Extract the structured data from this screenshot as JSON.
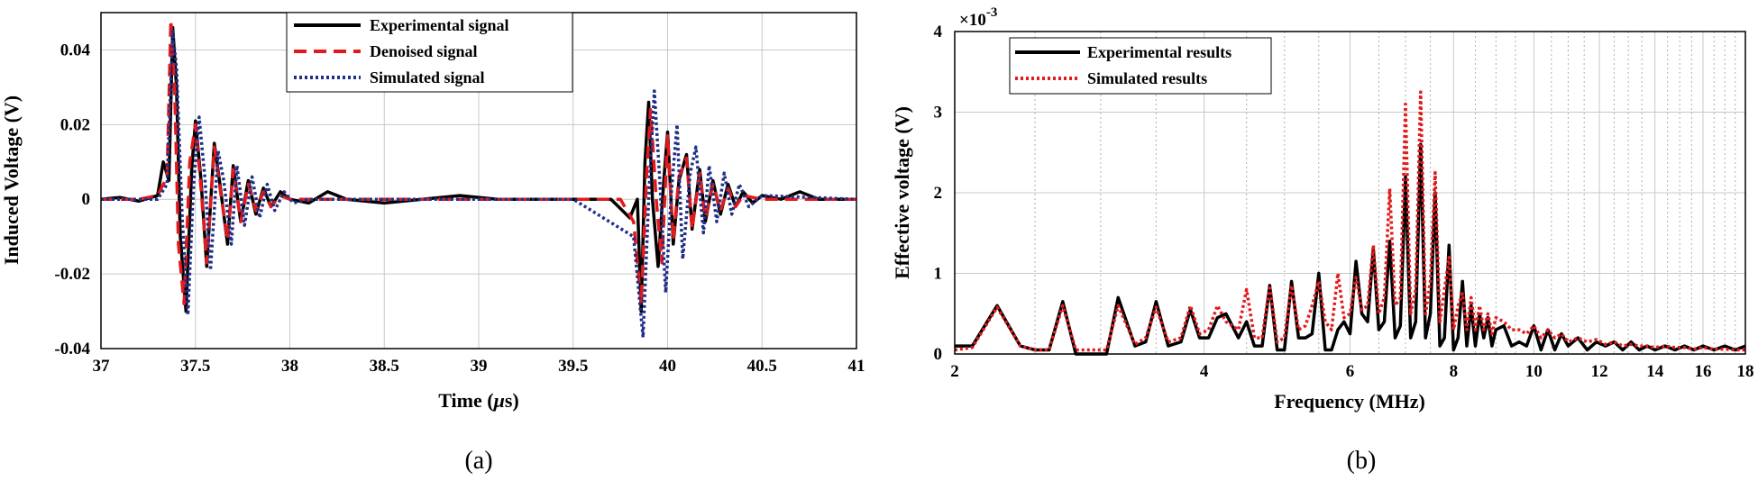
{
  "chart_data": [
    {
      "type": "line",
      "panel_label": "(a)",
      "xlabel_text": "Time (",
      "xlabel_unit_greek": "μ",
      "xlabel_unit_rest": "s)",
      "ylabel": "Induced Voltage (V)",
      "xlim": [
        37,
        41
      ],
      "ylim": [
        -0.04,
        0.05
      ],
      "xticks": [
        37,
        37.5,
        38,
        38.5,
        39,
        39.5,
        40,
        40.5,
        41
      ],
      "xtick_labels": [
        "37",
        "37.5",
        "38",
        "38.5",
        "39",
        "39.5",
        "40",
        "40.5",
        "41"
      ],
      "yticks": [
        -0.04,
        -0.02,
        0,
        0.02,
        0.04
      ],
      "ytick_labels": [
        "-0.04",
        "-0.02",
        "0",
        "0.02",
        "0.04"
      ],
      "grid": true,
      "legend_position": "top-center",
      "series": [
        {
          "name": "Experimental signal",
          "color": "#000000",
          "style": "solid",
          "x": [
            37.0,
            37.1,
            37.2,
            37.3,
            37.33,
            37.36,
            37.38,
            37.4,
            37.42,
            37.45,
            37.48,
            37.5,
            37.53,
            37.56,
            37.6,
            37.63,
            37.67,
            37.7,
            37.74,
            37.78,
            37.82,
            37.86,
            37.9,
            37.95,
            38.0,
            38.1,
            38.2,
            38.3,
            38.5,
            38.7,
            38.9,
            39.1,
            39.3,
            39.5,
            39.7,
            39.8,
            39.84,
            39.86,
            39.88,
            39.9,
            39.92,
            39.95,
            39.98,
            40.0,
            40.03,
            40.06,
            40.1,
            40.13,
            40.17,
            40.2,
            40.24,
            40.28,
            40.32,
            40.36,
            40.4,
            40.45,
            40.5,
            40.6,
            40.7,
            40.8,
            40.9,
            41.0
          ],
          "values": [
            0.0,
            0.0005,
            -0.0005,
            0.001,
            0.01,
            0.005,
            0.046,
            0.03,
            -0.01,
            -0.03,
            0.008,
            0.021,
            0.005,
            -0.018,
            0.015,
            0.004,
            -0.012,
            0.009,
            -0.006,
            0.005,
            -0.004,
            0.003,
            -0.002,
            0.002,
            0.0,
            -0.001,
            0.002,
            0.0,
            -0.001,
            0.0,
            0.001,
            0.0,
            0.0,
            0.0,
            0.0,
            -0.005,
            0.0,
            -0.03,
            0.01,
            0.026,
            0.0,
            -0.018,
            0.005,
            0.018,
            -0.012,
            0.005,
            0.012,
            -0.008,
            0.008,
            -0.006,
            0.005,
            -0.004,
            0.004,
            -0.002,
            0.002,
            -0.001,
            0.001,
            0.0,
            0.002,
            0.0,
            0.0,
            0.0
          ]
        },
        {
          "name": "Denoised signal",
          "color": "#e31a1c",
          "style": "dashed",
          "x": [
            37.0,
            37.2,
            37.3,
            37.35,
            37.37,
            37.39,
            37.41,
            37.44,
            37.47,
            37.5,
            37.53,
            37.56,
            37.6,
            37.63,
            37.67,
            37.7,
            37.74,
            37.78,
            37.82,
            37.86,
            37.9,
            37.95,
            38.0,
            38.5,
            39.0,
            39.5,
            39.75,
            39.82,
            39.86,
            39.89,
            39.91,
            39.94,
            39.97,
            40.0,
            40.03,
            40.06,
            40.1,
            40.13,
            40.17,
            40.2,
            40.24,
            40.28,
            40.32,
            40.36,
            40.4,
            40.5,
            41.0
          ],
          "values": [
            0.0,
            0.0,
            0.001,
            0.006,
            0.048,
            0.03,
            -0.012,
            -0.028,
            0.01,
            0.02,
            0.003,
            -0.017,
            0.014,
            0.003,
            -0.011,
            0.008,
            -0.006,
            0.004,
            -0.003,
            0.002,
            -0.002,
            0.001,
            0.0,
            0.0,
            0.0,
            0.0,
            0.0,
            -0.006,
            -0.028,
            0.008,
            0.024,
            0.0,
            -0.017,
            0.017,
            -0.011,
            0.006,
            0.011,
            -0.008,
            0.007,
            -0.005,
            0.004,
            -0.003,
            0.003,
            -0.002,
            0.001,
            0.0,
            0.0
          ]
        },
        {
          "name": "Simulated signal",
          "color": "#1f2f86",
          "style": "dotted",
          "x": [
            37.0,
            37.3,
            37.35,
            37.38,
            37.4,
            37.43,
            37.46,
            37.49,
            37.52,
            37.55,
            37.58,
            37.62,
            37.65,
            37.69,
            37.72,
            37.76,
            37.8,
            37.84,
            37.88,
            37.92,
            37.97,
            38.02,
            38.1,
            38.5,
            39.0,
            39.5,
            39.82,
            39.87,
            39.9,
            39.93,
            39.96,
            39.99,
            40.02,
            40.05,
            40.08,
            40.12,
            40.15,
            40.19,
            40.22,
            40.26,
            40.3,
            40.34,
            40.38,
            40.43,
            40.5,
            41.0
          ],
          "values": [
            0.0,
            0.0,
            0.004,
            0.045,
            0.035,
            -0.005,
            -0.031,
            0.004,
            0.022,
            0.006,
            -0.019,
            0.013,
            0.005,
            -0.012,
            0.009,
            -0.007,
            0.006,
            -0.005,
            0.004,
            -0.003,
            0.002,
            -0.001,
            0.0,
            0.0,
            0.0,
            0.0,
            -0.01,
            -0.037,
            0.0,
            0.029,
            0.004,
            -0.025,
            0.002,
            0.02,
            -0.016,
            0.007,
            0.014,
            -0.009,
            0.009,
            -0.006,
            0.007,
            -0.004,
            0.004,
            -0.002,
            0.001,
            0.0
          ]
        }
      ]
    },
    {
      "type": "line",
      "panel_label": "(b)",
      "xlabel": "Frequency (MHz)",
      "ylabel": "Effective voltage (V)",
      "y_multiplier_base": "×10",
      "y_multiplier_exp": "-3",
      "xscale": "log",
      "xlim": [
        2,
        18
      ],
      "ylim": [
        0,
        4
      ],
      "xticks": [
        2,
        4,
        6,
        8,
        10,
        12,
        14,
        16,
        18
      ],
      "xtick_labels": [
        "2",
        "4",
        "6",
        "8",
        "10",
        "12",
        "14",
        "16",
        "18"
      ],
      "yticks": [
        0,
        1,
        2,
        3,
        4
      ],
      "ytick_labels": [
        "0",
        "1",
        "2",
        "3",
        "4"
      ],
      "grid": true,
      "legend_position": "top-left",
      "series": [
        {
          "name": "Experimental results",
          "color": "#000000",
          "style": "solid",
          "x": [
            2.0,
            2.1,
            2.25,
            2.4,
            2.5,
            2.6,
            2.7,
            2.8,
            2.95,
            3.05,
            3.15,
            3.3,
            3.4,
            3.5,
            3.62,
            3.75,
            3.85,
            3.95,
            4.05,
            4.15,
            4.25,
            4.4,
            4.5,
            4.6,
            4.7,
            4.8,
            4.9,
            5.0,
            5.1,
            5.2,
            5.3,
            5.4,
            5.5,
            5.6,
            5.7,
            5.8,
            5.9,
            6.0,
            6.1,
            6.2,
            6.3,
            6.4,
            6.5,
            6.6,
            6.7,
            6.8,
            6.9,
            7.0,
            7.1,
            7.2,
            7.3,
            7.4,
            7.5,
            7.6,
            7.7,
            7.8,
            7.9,
            8.0,
            8.1,
            8.2,
            8.3,
            8.4,
            8.5,
            8.6,
            8.7,
            8.8,
            8.9,
            9.0,
            9.2,
            9.4,
            9.6,
            9.8,
            10.0,
            10.2,
            10.4,
            10.6,
            10.8,
            11.0,
            11.3,
            11.6,
            11.9,
            12.2,
            12.5,
            12.8,
            13.1,
            13.4,
            13.7,
            14.0,
            14.4,
            14.8,
            15.2,
            15.6,
            16.0,
            16.5,
            17.0,
            17.5,
            18.0
          ],
          "values": [
            0.1,
            0.1,
            0.6,
            0.1,
            0.05,
            0.05,
            0.65,
            0.0,
            0.0,
            0.0,
            0.7,
            0.1,
            0.15,
            0.65,
            0.1,
            0.15,
            0.55,
            0.2,
            0.2,
            0.45,
            0.5,
            0.2,
            0.4,
            0.1,
            0.1,
            0.85,
            0.05,
            0.05,
            0.9,
            0.2,
            0.2,
            0.25,
            1.0,
            0.05,
            0.05,
            0.3,
            0.4,
            0.25,
            1.15,
            0.5,
            0.4,
            1.3,
            0.3,
            0.4,
            1.4,
            0.2,
            0.35,
            2.2,
            0.2,
            0.4,
            2.6,
            0.2,
            0.5,
            2.0,
            0.1,
            0.2,
            1.35,
            0.05,
            0.2,
            0.9,
            0.1,
            0.6,
            0.1,
            0.5,
            0.2,
            0.45,
            0.1,
            0.3,
            0.35,
            0.1,
            0.15,
            0.1,
            0.35,
            0.05,
            0.3,
            0.05,
            0.25,
            0.1,
            0.2,
            0.05,
            0.15,
            0.1,
            0.15,
            0.05,
            0.15,
            0.05,
            0.1,
            0.05,
            0.1,
            0.05,
            0.1,
            0.05,
            0.1,
            0.05,
            0.1,
            0.05,
            0.1
          ]
        },
        {
          "name": "Simulated results",
          "color": "#e31a1c",
          "style": "dotted",
          "x": [
            2.0,
            2.1,
            2.25,
            2.4,
            2.5,
            2.6,
            2.7,
            2.8,
            2.95,
            3.05,
            3.15,
            3.3,
            3.4,
            3.5,
            3.62,
            3.75,
            3.85,
            3.95,
            4.05,
            4.15,
            4.25,
            4.4,
            4.5,
            4.6,
            4.7,
            4.8,
            4.9,
            5.0,
            5.1,
            5.2,
            5.3,
            5.4,
            5.5,
            5.6,
            5.7,
            5.8,
            5.9,
            6.0,
            6.1,
            6.2,
            6.3,
            6.4,
            6.5,
            6.6,
            6.7,
            6.8,
            6.9,
            7.0,
            7.1,
            7.2,
            7.3,
            7.4,
            7.5,
            7.6,
            7.7,
            7.8,
            7.9,
            8.0,
            8.1,
            8.2,
            8.3,
            8.4,
            8.5,
            8.6,
            8.7,
            8.8,
            8.9,
            9.0,
            9.2,
            9.4,
            9.6,
            9.8,
            10.0,
            10.2,
            10.4,
            10.6,
            10.8,
            11.0,
            11.3,
            11.6,
            11.9,
            12.2,
            12.5,
            12.8,
            13.1,
            13.4,
            13.7,
            14.0,
            14.4,
            14.8,
            15.2,
            15.6,
            16.0,
            16.5,
            17.0,
            17.5,
            18.0
          ],
          "values": [
            0.05,
            0.08,
            0.58,
            0.1,
            0.05,
            0.05,
            0.6,
            0.05,
            0.05,
            0.05,
            0.6,
            0.12,
            0.2,
            0.58,
            0.15,
            0.2,
            0.6,
            0.25,
            0.3,
            0.6,
            0.4,
            0.3,
            0.8,
            0.2,
            0.2,
            0.85,
            0.15,
            0.2,
            0.85,
            0.3,
            0.35,
            0.6,
            0.9,
            0.4,
            0.3,
            1.0,
            0.45,
            0.5,
            0.95,
            0.55,
            0.6,
            1.35,
            0.5,
            0.7,
            2.05,
            0.6,
            0.7,
            3.1,
            0.5,
            0.8,
            3.25,
            0.5,
            0.9,
            2.25,
            0.4,
            0.8,
            1.2,
            0.3,
            0.6,
            0.75,
            0.3,
            0.7,
            0.3,
            0.6,
            0.3,
            0.5,
            0.25,
            0.45,
            0.4,
            0.3,
            0.3,
            0.25,
            0.35,
            0.2,
            0.3,
            0.2,
            0.25,
            0.15,
            0.2,
            0.15,
            0.18,
            0.12,
            0.15,
            0.1,
            0.12,
            0.1,
            0.1,
            0.08,
            0.1,
            0.08,
            0.08,
            0.06,
            0.08,
            0.06,
            0.06,
            0.05,
            0.05
          ]
        }
      ]
    }
  ]
}
